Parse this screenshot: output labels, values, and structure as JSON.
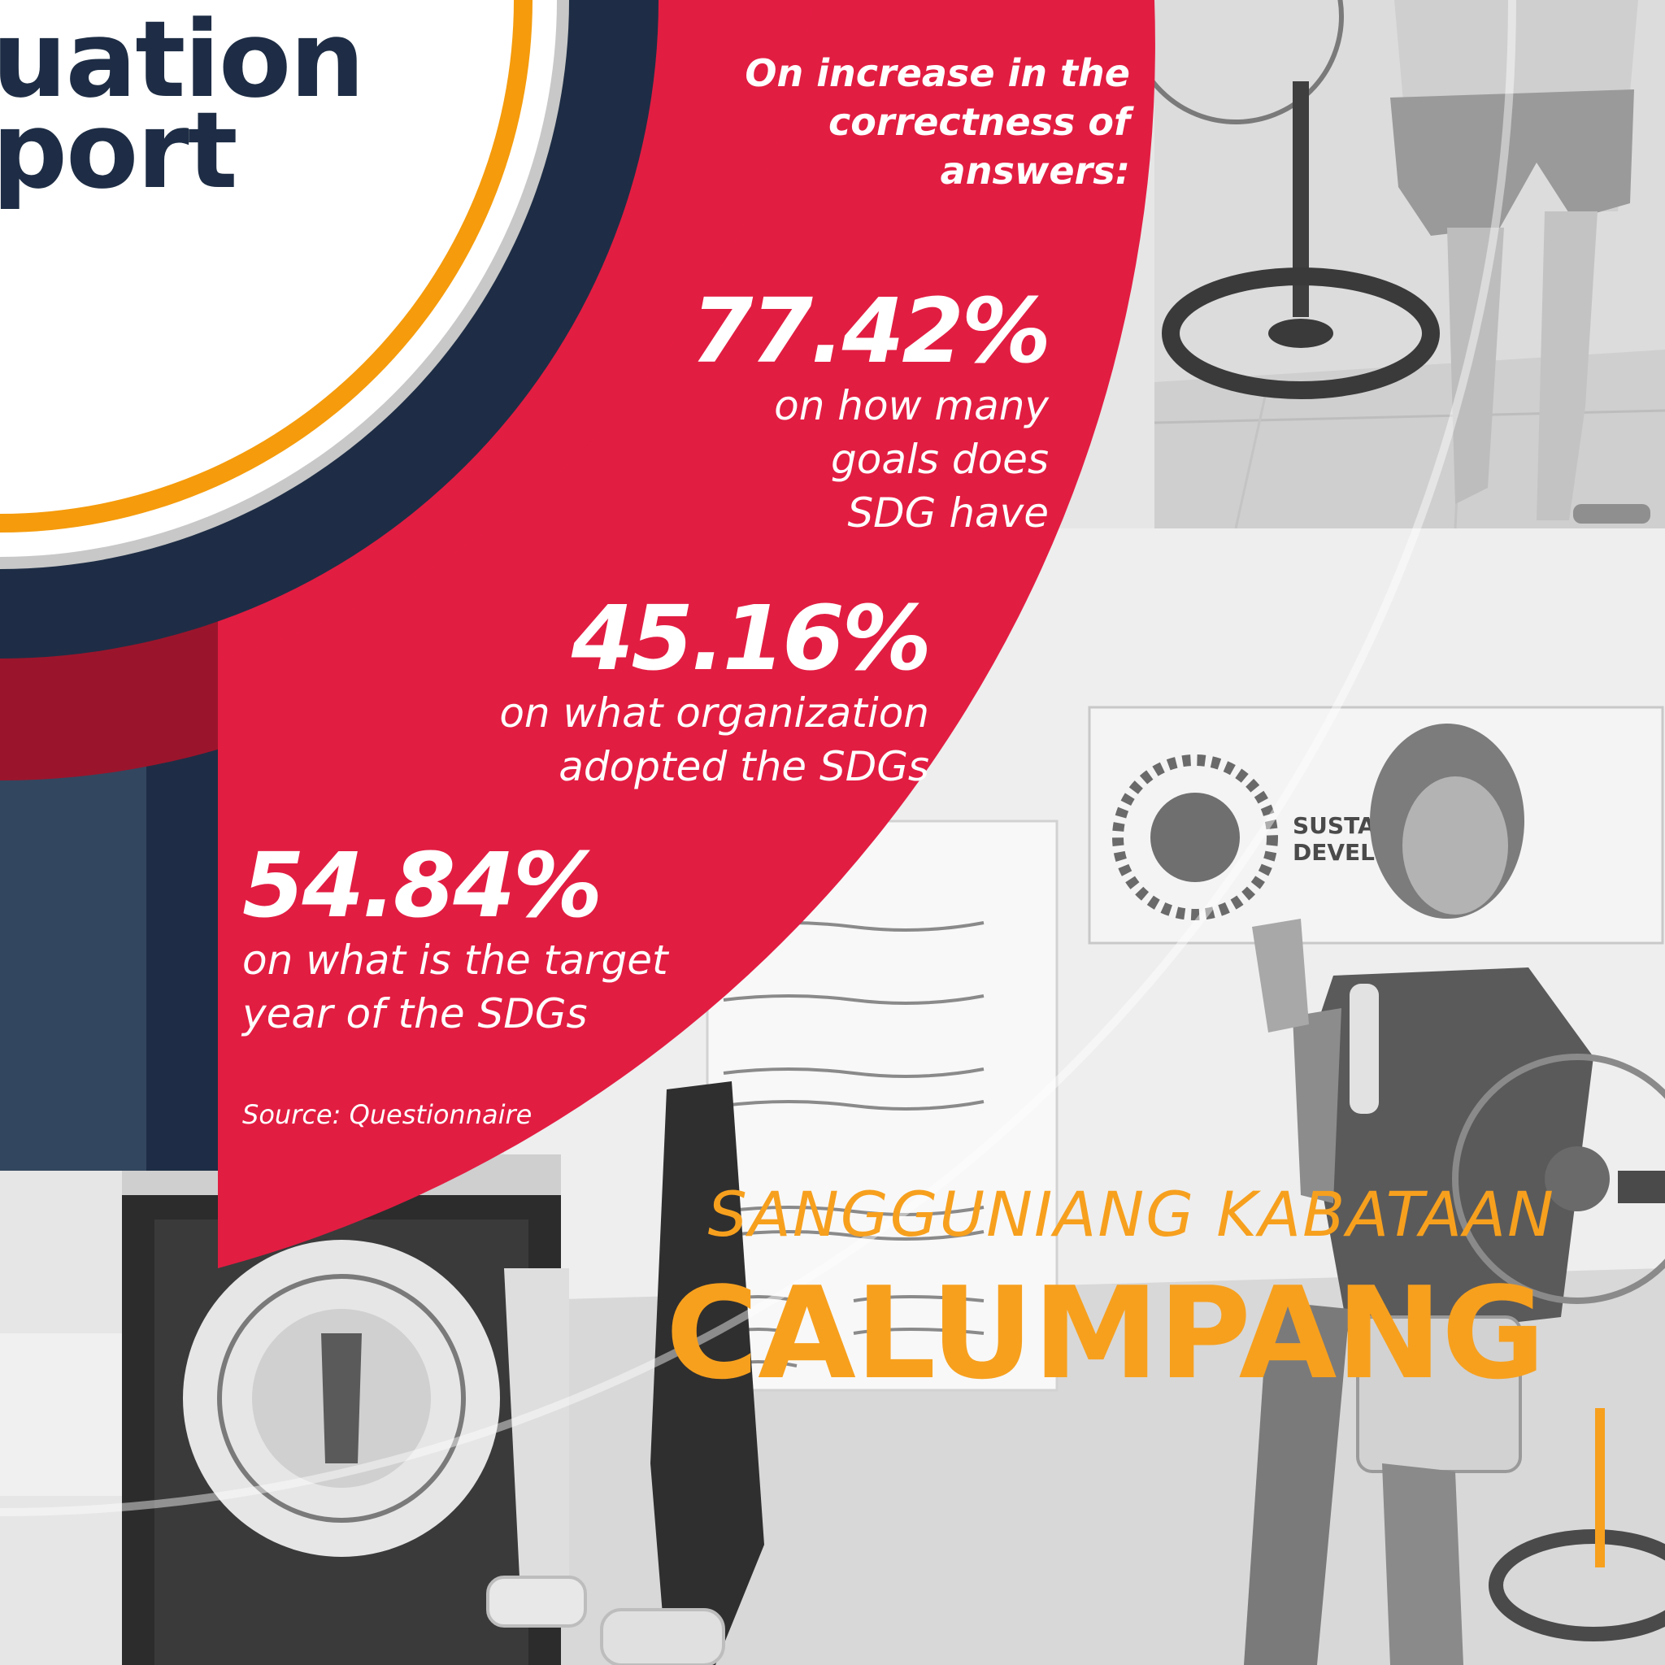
{
  "heading": {
    "line1": "uation",
    "line2": "port"
  },
  "intro": {
    "line1": "On increase in the",
    "line2": "correctness of",
    "line3": "answers:"
  },
  "stats": [
    {
      "value": "77.42%",
      "desc": [
        "on how many",
        "goals does",
        "SDG have"
      ]
    },
    {
      "value": "45.16%",
      "desc": [
        "on what organization",
        "adopted the SDGs"
      ]
    },
    {
      "value": "54.84%",
      "desc": [
        "on what is the target",
        "year of the SDGs"
      ]
    }
  ],
  "source": "Source: Questionnaire",
  "brand": {
    "top": "SANGGUNIANG KABATAAN",
    "main": "CALUMPANG"
  },
  "colors": {
    "red": "#e21d42",
    "dark_red": "#9a152c",
    "navy": "#1e2d45",
    "slate": "#33465f",
    "orange": "#f59b0c",
    "brand_orange": "#f7a01e"
  }
}
